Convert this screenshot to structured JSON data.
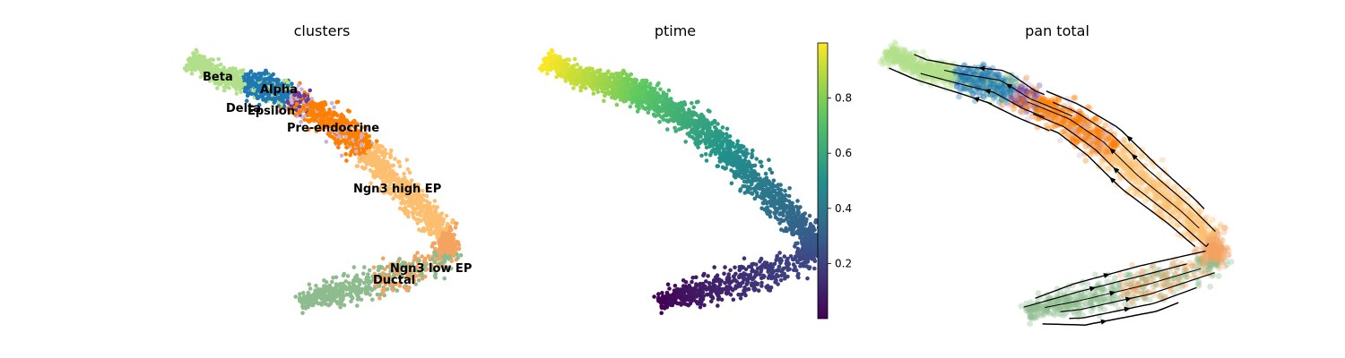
{
  "chart_data": [
    {
      "type": "scatter",
      "title": "clusters",
      "clusters": [
        {
          "name": "Ductal",
          "color": "#8fbc8f"
        },
        {
          "name": "Ngn3 low EP",
          "color": "#f4a460"
        },
        {
          "name": "Ngn3 high EP",
          "color": "#fdbf6f"
        },
        {
          "name": "Pre-endocrine",
          "color": "#ff7f00"
        },
        {
          "name": "Beta",
          "color": "#b2df8a"
        },
        {
          "name": "Alpha",
          "color": "#1f78b4"
        },
        {
          "name": "Delta",
          "color": "#6a3d9a"
        },
        {
          "name": "Epsilon",
          "color": "#cab2d6"
        }
      ]
    },
    {
      "type": "scatter",
      "title": "ptime",
      "colormap": "viridis",
      "colorbar": {
        "min": 0.0,
        "max": 1.0,
        "ticks": [
          0.2,
          0.4,
          0.6,
          0.8
        ]
      }
    },
    {
      "type": "scatter",
      "title": "pan total",
      "overlay": "velocity-streamlines"
    }
  ]
}
